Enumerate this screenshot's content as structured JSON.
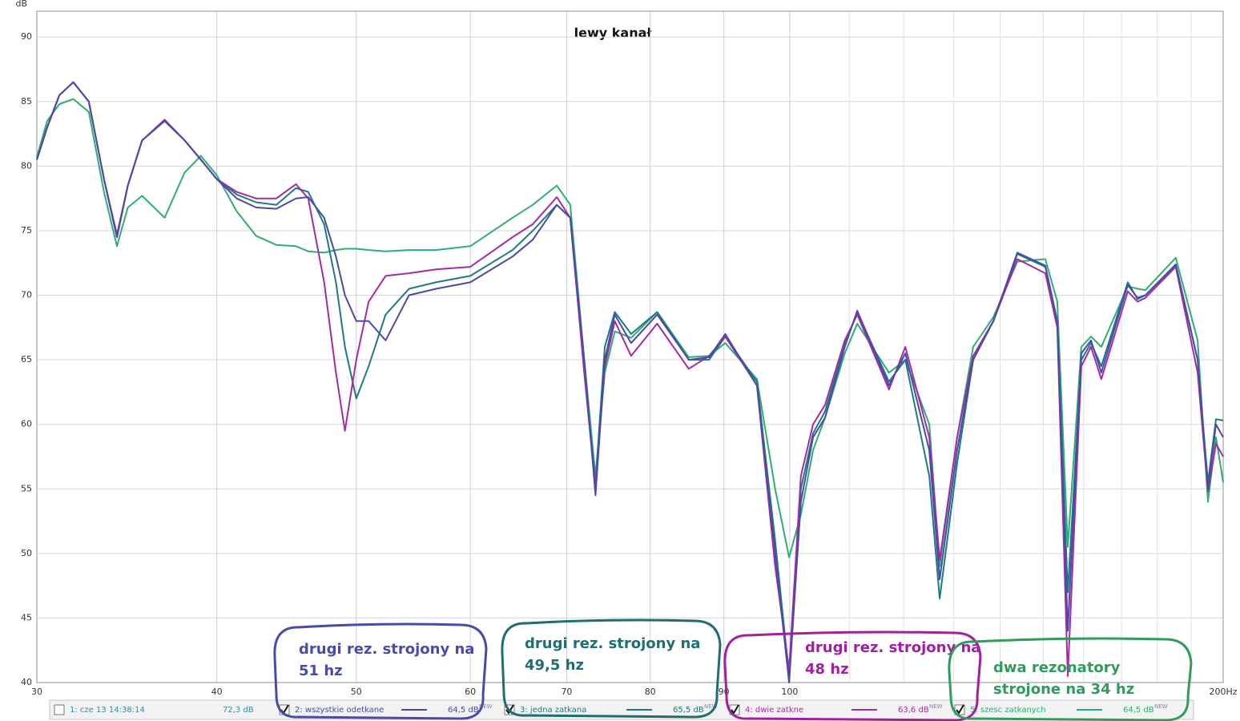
{
  "chart_data": {
    "type": "line",
    "title": "lewy kanał",
    "ylabel": "dB",
    "log_x": true,
    "grid": true,
    "xlim": [
      30,
      200
    ],
    "ylim": [
      40,
      92
    ],
    "xticks": [
      30,
      40,
      50,
      60,
      70,
      80,
      90,
      100,
      {
        "value": 200,
        "label": "200Hz"
      }
    ],
    "xgrid_minor": [
      110,
      120,
      130,
      140,
      150,
      160,
      170,
      180,
      190
    ],
    "yticks": [
      40,
      45,
      50,
      55,
      60,
      65,
      70,
      75,
      80,
      85,
      90
    ],
    "x": [
      30.0,
      30.5,
      31.1,
      31.8,
      32.6,
      33.4,
      34.1,
      34.7,
      35.5,
      36.8,
      38.0,
      39.0,
      40.0,
      41.3,
      42.6,
      44.0,
      45.4,
      46.3,
      47.5,
      48.4,
      49.1,
      50.0,
      51.0,
      52.4,
      54.4,
      56.8,
      60.0,
      64.2,
      66.3,
      68.9,
      70.4,
      72.0,
      73.3,
      74.4,
      75.6,
      77.6,
      80.9,
      85.1,
      87.9,
      90.2,
      94.9,
      97.7,
      99.9,
      101.8,
      103.8,
      105.8,
      109.2,
      111.4,
      117.2,
      120.3,
      125.0,
      127.1,
      130.7,
      134.1,
      138.5,
      143.9,
      150.5,
      153.4,
      156.0,
      159.4,
      161.9,
      164.6,
      171.7,
      174.4,
      176.6,
      185.4,
      192.0,
      195.2,
      197.7,
      200.0
    ],
    "reference": {
      "name": "1: cze 13 14:38:14",
      "level": "72,3 dB",
      "checked": false
    },
    "series": [
      {
        "name": "2: wszystkie odetkane",
        "color": "#4a4aa8",
        "level": "64,5 dB",
        "tag": "NEW",
        "checked": true,
        "values": [
          80.5,
          83,
          85.5,
          86.5,
          85,
          79,
          74.5,
          78.5,
          82,
          83.5,
          82,
          80.5,
          79,
          77.5,
          76.8,
          76.7,
          77.5,
          77.6,
          76,
          73,
          70,
          68,
          68,
          66.5,
          70,
          70.5,
          71,
          73,
          74.3,
          77,
          76,
          65,
          54.5,
          65,
          68.5,
          66.3,
          68.5,
          65,
          65.2,
          67,
          63,
          50,
          40,
          54,
          59,
          60.5,
          66,
          68.8,
          63,
          65.5,
          58,
          48,
          58,
          65,
          68,
          73.3,
          72.3,
          68,
          44,
          65.5,
          66.5,
          64,
          70.8,
          69.8,
          70,
          72.4,
          65,
          55,
          60,
          59
        ]
      },
      {
        "name": "3: jedna zatkana",
        "color": "#1f7a80",
        "level": "65,5 dB",
        "tag": "NEW",
        "checked": true,
        "values": [
          80.5,
          83,
          85.5,
          86.5,
          85,
          79,
          74.5,
          78.5,
          82,
          83.5,
          82,
          80.5,
          79,
          77.8,
          77.2,
          77,
          78.3,
          78,
          75.5,
          71,
          66,
          62,
          64.5,
          68.5,
          70.5,
          71,
          71.5,
          73.5,
          75,
          77,
          76,
          64,
          55.5,
          66,
          68.7,
          67,
          68.7,
          65,
          65,
          66.8,
          63.3,
          51,
          40.5,
          55,
          59.3,
          61,
          66.2,
          68.7,
          63.3,
          65,
          56,
          46.5,
          57,
          65,
          68,
          73.2,
          72.2,
          68,
          47,
          65,
          66.3,
          64.5,
          71,
          69.7,
          70,
          72.3,
          65,
          55.5,
          60.4,
          60.3
        ]
      },
      {
        "name": "4: dwie zatkne",
        "color": "#a32ca3",
        "level": "63,6 dB",
        "tag": "NEW",
        "checked": true,
        "values": [
          80.5,
          83,
          85.5,
          86.5,
          85,
          79,
          74.7,
          78.5,
          82,
          83.6,
          82,
          80.5,
          79,
          78,
          77.5,
          77.5,
          78.6,
          77.5,
          71,
          64,
          59.5,
          65,
          69.5,
          71.5,
          71.7,
          72,
          72.2,
          74.5,
          75.5,
          77.6,
          76,
          64,
          55,
          64.5,
          68,
          65.3,
          67.8,
          64.3,
          65.3,
          66.8,
          63,
          49,
          41,
          56,
          60,
          61.5,
          66.5,
          68.5,
          62.7,
          66,
          59,
          49.5,
          59,
          65.3,
          68,
          72.8,
          71.7,
          67.5,
          40.5,
          64.5,
          66,
          63.5,
          70.3,
          69.5,
          69.8,
          72.2,
          64,
          54.8,
          58.5,
          57.5
        ]
      },
      {
        "name": "5: szesc zatkanych",
        "color": "#2fae70",
        "level": "64,5 dB",
        "tag": "NEW",
        "checked": true,
        "values": [
          80.7,
          83.5,
          84.8,
          85.2,
          84.2,
          78,
          73.8,
          76.8,
          77.7,
          76,
          79.5,
          80.8,
          79.3,
          76.5,
          74.6,
          73.9,
          73.8,
          73.4,
          73.3,
          73.5,
          73.6,
          73.6,
          73.5,
          73.4,
          73.5,
          73.5,
          73.8,
          76,
          77,
          78.5,
          77,
          65,
          56,
          64,
          67.2,
          66.7,
          68.7,
          65.2,
          65.3,
          66.3,
          63.5,
          55,
          49.7,
          53,
          58,
          60.5,
          65.5,
          67.8,
          64,
          65,
          60,
          49,
          59,
          66,
          68.3,
          72.6,
          72.8,
          69.5,
          50.5,
          66,
          66.8,
          66,
          70.7,
          70.5,
          70.4,
          72.9,
          66.5,
          54,
          59,
          55.5
        ]
      }
    ],
    "annotations": [
      {
        "lines": [
          "drugi rez. strojony na",
          "51 hz"
        ],
        "color": "#4a4aa8"
      },
      {
        "lines": [
          "drugi rez. strojony na",
          "49,5 hz"
        ],
        "color": "#1f6e70"
      },
      {
        "lines": [
          "drugi rez. strojony na",
          "48 hz"
        ],
        "color": "#a020a0"
      },
      {
        "lines": [
          "dwa rezonatory",
          "strojone na 34 hz"
        ],
        "color": "#2e9c5a"
      }
    ]
  }
}
